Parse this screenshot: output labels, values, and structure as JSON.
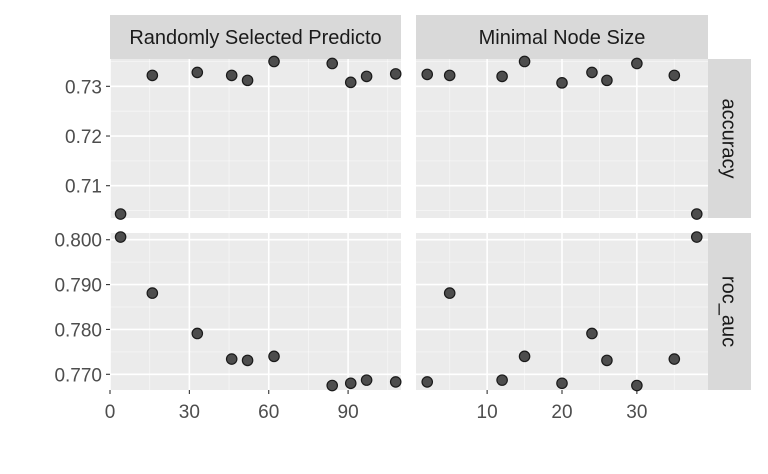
{
  "chart_data": {
    "type": "scatter",
    "facet_columns": [
      "Randomly Selected Predicto",
      "Minimal Node Size"
    ],
    "facet_rows": [
      "accuracy",
      "roc_auc"
    ],
    "x_ticks": {
      "Randomly Selected Predicto": [
        0,
        30,
        60,
        90
      ],
      "Minimal Node Size": [
        10,
        20,
        30
      ]
    },
    "x_ranges": {
      "Randomly Selected Predicto": [
        0,
        110
      ],
      "Minimal Node Size": [
        0.5,
        39.5
      ]
    },
    "y_ticks": {
      "accuracy": [
        0.71,
        0.72,
        0.73
      ],
      "roc_auc": [
        0.77,
        0.78,
        0.79,
        0.8
      ]
    },
    "y_tick_labels": {
      "accuracy": [
        "0.71",
        "0.72",
        "0.73"
      ],
      "roc_auc": [
        "0.770",
        "0.780",
        "0.790",
        "0.800"
      ]
    },
    "y_ranges": {
      "accuracy": [
        0.7035,
        0.7355
      ],
      "roc_auc": [
        0.7665,
        0.8015
      ]
    },
    "panels": [
      {
        "col": "Randomly Selected Predicto",
        "row": "accuracy",
        "x": [
          4,
          16,
          33,
          46,
          52,
          62,
          84,
          91,
          97,
          108
        ],
        "y": [
          0.7043,
          0.7322,
          0.7328,
          0.7322,
          0.7312,
          0.735,
          0.7346,
          0.7308,
          0.732,
          0.7325
        ]
      },
      {
        "col": "Minimal Node Size",
        "row": "accuracy",
        "x": [
          2,
          5,
          12,
          15,
          20,
          24,
          26,
          30,
          35,
          38
        ],
        "y": [
          0.7324,
          0.7322,
          0.732,
          0.735,
          0.7307,
          0.7328,
          0.7312,
          0.7346,
          0.7322,
          0.7043
        ]
      },
      {
        "col": "Randomly Selected Predicto",
        "row": "roc_auc",
        "x": [
          4,
          16,
          33,
          46,
          52,
          62,
          84,
          91,
          97,
          108
        ],
        "y": [
          0.8006,
          0.7881,
          0.7791,
          0.7734,
          0.7731,
          0.774,
          0.7675,
          0.768,
          0.7687,
          0.7683
        ]
      },
      {
        "col": "Minimal Node Size",
        "row": "roc_auc",
        "x": [
          2,
          5,
          12,
          15,
          20,
          24,
          26,
          30,
          35,
          38
        ],
        "y": [
          0.7683,
          0.7881,
          0.7687,
          0.774,
          0.768,
          0.7791,
          0.7731,
          0.7675,
          0.7734,
          0.8006
        ]
      }
    ],
    "grid": true,
    "legend": "none",
    "colors": {
      "panel_background": "#ebebeb",
      "strip_background": "#d9d9d9",
      "grid_major": "#ffffff",
      "point_fill": "#4d4d4d",
      "point_stroke": "#1a1a1a",
      "tick_text": "#4d4d4d",
      "strip_text": "#1a1a1a"
    }
  }
}
